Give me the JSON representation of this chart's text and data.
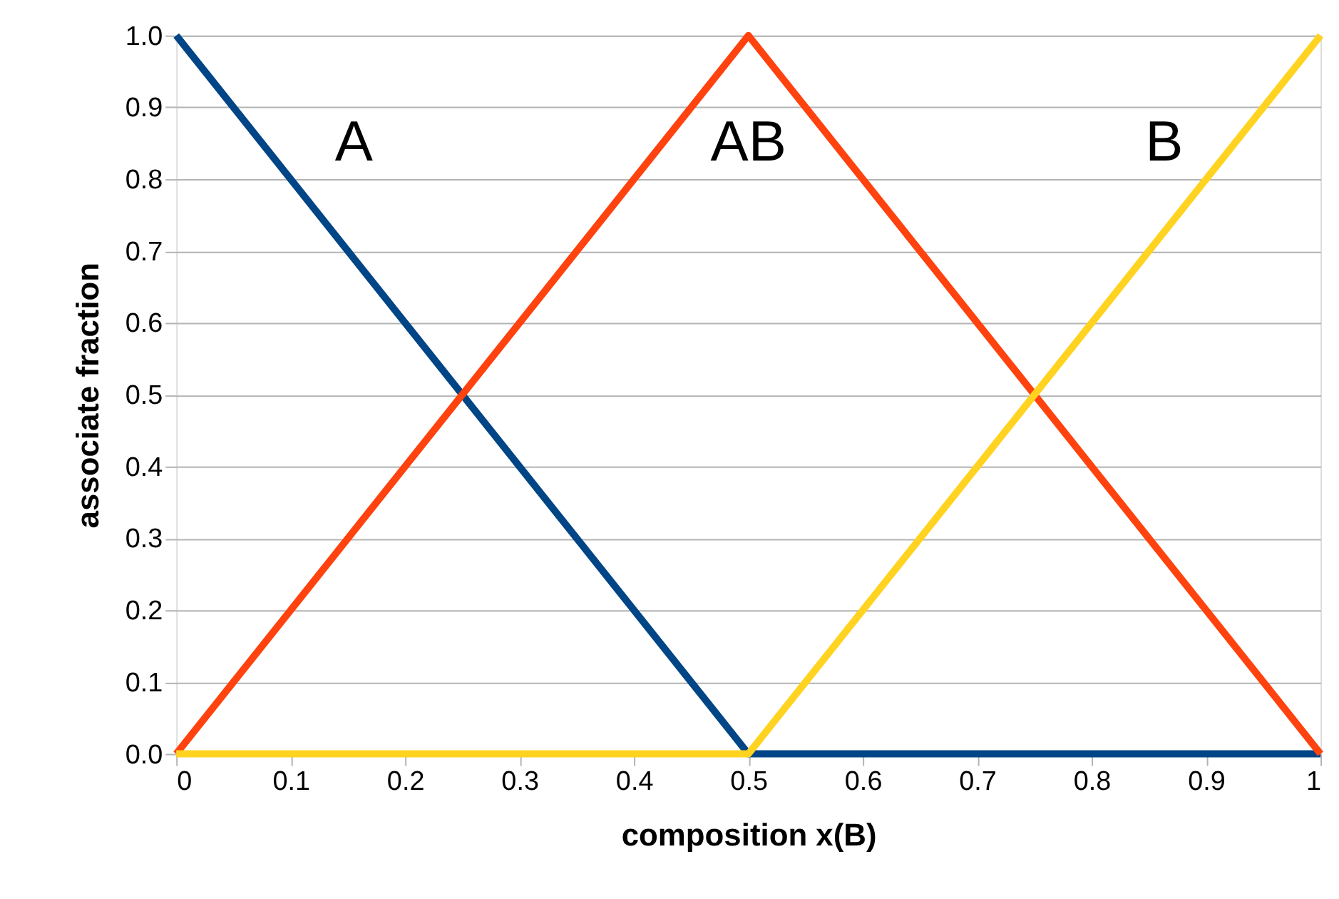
{
  "chart_data": {
    "type": "line",
    "xlabel": "composition x(B)",
    "ylabel": "associate fraction",
    "x": [
      0,
      0.5,
      1
    ],
    "series": [
      {
        "name": "A",
        "color": "#004586",
        "values": [
          1,
          0,
          0
        ]
      },
      {
        "name": "AB",
        "color": "#ff420e",
        "values": [
          0,
          1,
          0
        ]
      },
      {
        "name": "B",
        "color": "#ffd320",
        "values": [
          0,
          0,
          1
        ]
      }
    ],
    "xlim": [
      0,
      1
    ],
    "xticks": [
      0,
      0.1,
      0.2,
      0.3,
      0.4,
      0.5,
      0.6,
      0.7,
      0.8,
      0.9,
      1
    ],
    "ylim": [
      0,
      1
    ],
    "yticks": [
      {
        "value": 0,
        "label": "0.0"
      },
      {
        "value": 0.1,
        "label": "0.1"
      },
      {
        "value": 0.2,
        "label": "0.2"
      },
      {
        "value": 0.3,
        "label": "0.3"
      },
      {
        "value": 0.4,
        "label": "0.4"
      },
      {
        "value": 0.5,
        "label": "0.5"
      },
      {
        "value": 0.6,
        "label": "0.6"
      },
      {
        "value": 0.7,
        "label": "0.7"
      },
      {
        "value": 0.8,
        "label": "0.8"
      },
      {
        "value": 0.9,
        "label": "0.9"
      },
      {
        "value": 1,
        "label": "1.0"
      }
    ],
    "grid": "y",
    "legend": false,
    "marker": "none",
    "line_style": "solid"
  }
}
